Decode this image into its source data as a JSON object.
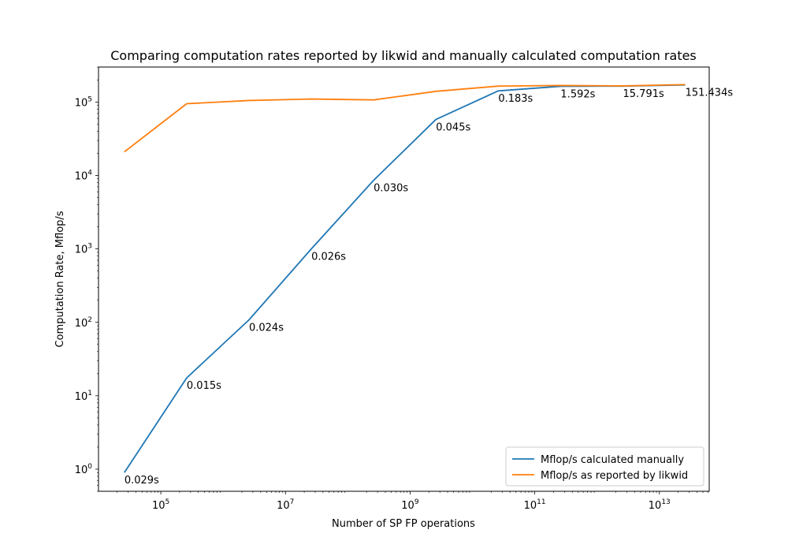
{
  "chart_data": {
    "type": "line",
    "title": "Comparing  computation rates reported by likwid and manually calculated computation rates",
    "xlabel": "Number of SP FP operations",
    "ylabel": "Computation Rate, Mflop/s",
    "xscale": "log",
    "yscale": "log",
    "xlim": [
      10000,
      63000000000000
    ],
    "ylim": [
      0.5,
      300000
    ],
    "x_ticks": [
      {
        "value": 100000,
        "base": "10",
        "exp": "5"
      },
      {
        "value": 10000000,
        "base": "10",
        "exp": "7"
      },
      {
        "value": 1000000000,
        "base": "10",
        "exp": "9"
      },
      {
        "value": 100000000000,
        "base": "10",
        "exp": "11"
      },
      {
        "value": 10000000000000,
        "base": "10",
        "exp": "13"
      }
    ],
    "y_ticks": [
      {
        "value": 1,
        "base": "10",
        "exp": "0"
      },
      {
        "value": 10,
        "base": "10",
        "exp": "1"
      },
      {
        "value": 100,
        "base": "10",
        "exp": "2"
      },
      {
        "value": 1000,
        "base": "10",
        "exp": "3"
      },
      {
        "value": 10000,
        "base": "10",
        "exp": "4"
      },
      {
        "value": 100000,
        "base": "10",
        "exp": "5"
      }
    ],
    "x": [
      26000,
      260000,
      2600000,
      26000000,
      260000000,
      2600000000,
      26000000000,
      260000000000,
      2600000000000,
      26000000000000
    ],
    "series": [
      {
        "name": "Mflop/s calculated manually",
        "color": "#1f77b4",
        "values": [
          0.9,
          17.5,
          108,
          1000,
          8600,
          58000,
          142000,
          164000,
          165000,
          171000
        ]
      },
      {
        "name": "Mflop/s as reported by likwid",
        "color": "#ff7f0e",
        "values": [
          21000,
          95000,
          105000,
          110000,
          107000,
          140000,
          165000,
          168000,
          166000,
          173000
        ]
      }
    ],
    "annotations": [
      "0.029s",
      "0.015s",
      "0.024s",
      "0.026s",
      "0.030s",
      "0.045s",
      "0.183s",
      "1.592s",
      "15.791s",
      "151.434s"
    ],
    "legend_position": "lower-right",
    "grid": false
  }
}
